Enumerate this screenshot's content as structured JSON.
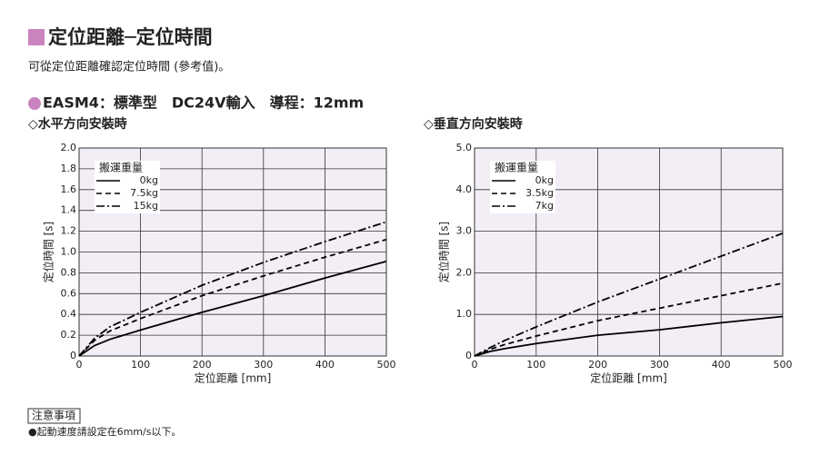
{
  "header": {
    "title": "定位距離─定位時間",
    "subtitle": "可從定位距離確認定位時間 (參考值)。",
    "model": "EASM4：標準型　DC24V輸入　導程：12mm"
  },
  "chart_data": [
    {
      "type": "line",
      "title": "◇水平方向安裝時",
      "x_label": "定位距離 [mm]",
      "y_label": "定位時間 [s]",
      "legend_title": "搬運重量",
      "x": [
        0,
        25,
        50,
        100,
        200,
        300,
        400,
        500
      ],
      "series": [
        {
          "name": "0kg",
          "color": "#000000",
          "dash": "solid",
          "values": [
            0,
            0.1,
            0.16,
            0.25,
            0.42,
            0.58,
            0.75,
            0.91
          ]
        },
        {
          "name": "7.5kg",
          "color": "#000000",
          "dash": "dashed",
          "values": [
            0,
            0.15,
            0.24,
            0.36,
            0.58,
            0.77,
            0.95,
            1.12
          ]
        },
        {
          "name": "15kg",
          "color": "#000000",
          "dash": "dashdot",
          "values": [
            0,
            0.17,
            0.28,
            0.42,
            0.68,
            0.9,
            1.1,
            1.29
          ]
        }
      ],
      "xlim": [
        0,
        500
      ],
      "xticks": [
        0,
        100,
        200,
        300,
        400,
        500
      ],
      "ylim": [
        0,
        2
      ],
      "yticks": [
        0,
        0.2,
        0.4,
        0.6,
        0.8,
        {
          "value": 1,
          "label": "1.0"
        },
        1.2,
        1.4,
        1.6,
        1.8,
        {
          "value": 2,
          "label": "2.0"
        }
      ],
      "grid": true,
      "legend": "upper left"
    },
    {
      "type": "line",
      "title": "◇垂直方向安裝時",
      "x_label": "定位距離 [mm]",
      "y_label": "定位時間 [s]",
      "legend_title": "搬運重量",
      "x": [
        0,
        25,
        50,
        100,
        200,
        300,
        400,
        500
      ],
      "series": [
        {
          "name": "0kg",
          "color": "#000000",
          "dash": "solid",
          "values": [
            0,
            0.11,
            0.18,
            0.3,
            0.5,
            0.63,
            0.8,
            0.95
          ]
        },
        {
          "name": "3.5kg",
          "color": "#000000",
          "dash": "dashed",
          "values": [
            0,
            0.16,
            0.28,
            0.48,
            0.85,
            1.15,
            1.45,
            1.75
          ]
        },
        {
          "name": "7kg",
          "color": "#000000",
          "dash": "dashdot",
          "values": [
            0,
            0.2,
            0.38,
            0.7,
            1.3,
            1.85,
            2.4,
            2.95
          ]
        }
      ],
      "xlim": [
        0,
        500
      ],
      "xticks": [
        0,
        100,
        200,
        300,
        400,
        500
      ],
      "ylim": [
        0,
        5
      ],
      "yticks": [
        0,
        {
          "value": 1,
          "label": "1.0"
        },
        {
          "value": 2,
          "label": "2.0"
        },
        {
          "value": 3,
          "label": "3.0"
        },
        {
          "value": 4,
          "label": "4.0"
        },
        {
          "value": 5,
          "label": "5.0"
        }
      ],
      "grid": true,
      "legend": "upper left"
    }
  ],
  "notes": {
    "title": "注意事項",
    "items": [
      "●起動速度請設定在6mm/s以下。"
    ]
  }
}
